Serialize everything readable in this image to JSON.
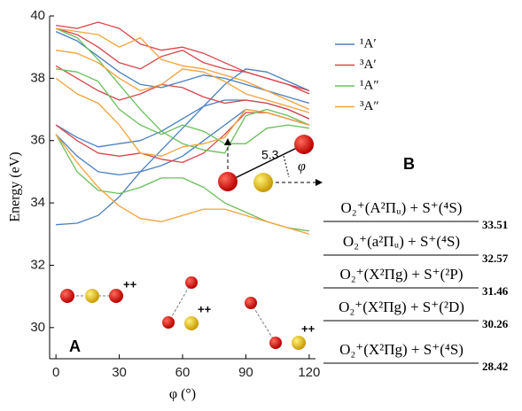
{
  "chart_data": {
    "type": "line",
    "x_label": "φ (°)",
    "y_label": "Energy (eV)",
    "x": [
      0,
      10,
      20,
      30,
      40,
      50,
      60,
      70,
      80,
      90,
      100,
      110,
      120
    ],
    "xlim": [
      -3,
      123
    ],
    "ylim": [
      29,
      40
    ],
    "xticks": [
      0,
      30,
      60,
      90,
      120
    ],
    "yticks": [
      30,
      32,
      34,
      36,
      38,
      40
    ],
    "legend": "upper right",
    "series": [
      {
        "name": "¹A′",
        "color": "#4a7fc0",
        "values": [
          [
            33.3,
            33.35,
            33.6,
            34.2,
            35.0,
            35.7,
            36.4,
            37.1,
            37.8,
            38.3,
            38.2,
            37.9,
            37.6
          ],
          [
            36.5,
            36.1,
            35.8,
            35.9,
            36.0,
            36.3,
            36.7,
            37.1,
            37.3,
            37.3,
            37.2,
            37.0,
            36.7
          ],
          [
            39.5,
            39.2,
            38.7,
            38.2,
            37.8,
            37.7,
            37.9,
            38.1,
            38.0,
            37.8,
            37.6,
            37.4,
            37.2
          ],
          [
            36.2,
            35.5,
            35.0,
            34.9,
            35.0,
            35.2,
            35.5,
            36.0,
            36.5,
            37.0,
            36.9,
            36.7,
            36.5
          ]
        ]
      },
      {
        "name": "³A′",
        "color": "#d9454a",
        "values": [
          [
            39.6,
            39.4,
            39.0,
            38.5,
            38.3,
            38.7,
            38.9,
            38.5,
            38.3,
            38.2,
            38.0,
            37.8,
            37.5
          ],
          [
            38.4,
            38.0,
            37.6,
            37.3,
            37.5,
            37.8,
            37.7,
            37.4,
            37.2,
            37.3,
            37.2,
            37.0,
            36.7
          ],
          [
            36.5,
            36.0,
            35.6,
            35.5,
            35.6,
            35.4,
            35.3,
            35.6,
            36.2,
            36.9,
            36.9,
            36.7,
            36.5
          ],
          [
            39.7,
            39.6,
            39.8,
            39.6,
            39.1,
            38.9,
            39.0,
            38.8,
            38.5,
            38.2,
            38.0,
            37.8,
            37.6
          ]
        ]
      },
      {
        "name": "¹A″",
        "color": "#6abf5a",
        "values": [
          [
            36.2,
            35.0,
            34.4,
            34.3,
            34.5,
            34.8,
            34.8,
            34.5,
            34.0,
            33.7,
            33.4,
            33.2,
            33.1
          ],
          [
            38.3,
            38.2,
            37.9,
            37.0,
            36.5,
            36.2,
            36.5,
            36.3,
            35.9,
            35.9,
            36.4,
            36.5,
            36.4
          ],
          [
            39.6,
            39.3,
            38.6,
            37.8,
            37.0,
            36.3,
            35.9,
            35.7,
            35.6,
            36.8,
            37.0,
            36.8,
            36.5
          ]
        ]
      },
      {
        "name": "³A″",
        "color": "#f2a23a",
        "values": [
          [
            36.2,
            35.3,
            34.5,
            33.9,
            33.5,
            33.4,
            33.6,
            33.8,
            33.8,
            33.6,
            33.4,
            33.2,
            33.0
          ],
          [
            38.9,
            38.8,
            38.5,
            38.0,
            37.6,
            37.8,
            38.3,
            38.2,
            37.9,
            37.5,
            37.3,
            37.1,
            36.9
          ],
          [
            39.6,
            39.5,
            39.4,
            39.0,
            39.3,
            38.6,
            38.4,
            38.3,
            38.1,
            37.9,
            37.6,
            37.3,
            37.0
          ],
          [
            38.0,
            37.5,
            37.2,
            36.5,
            35.6,
            35.5,
            35.8,
            35.9,
            36.1,
            37.0,
            36.9,
            36.7,
            36.5
          ]
        ]
      }
    ],
    "levels": [
      {
        "label": "O₂⁺(A²Πᵤ) + S⁺(⁴S)",
        "value": 33.51
      },
      {
        "label": "O₂⁺(a²Πᵤ) + S⁺(⁴S)",
        "value": 32.57
      },
      {
        "label": "O₂⁺(X²Πg) + S⁺(²P)",
        "value": 31.46
      },
      {
        "label": "O₂⁺(X²Πg) + S⁺(²D)",
        "value": 30.26
      },
      {
        "label": "O₂⁺(X²Πg) + S⁺(⁴S)",
        "value": 28.42
      }
    ],
    "annotations": [
      "A",
      "B",
      "5.3",
      "φ",
      "++",
      "++",
      "++"
    ]
  }
}
